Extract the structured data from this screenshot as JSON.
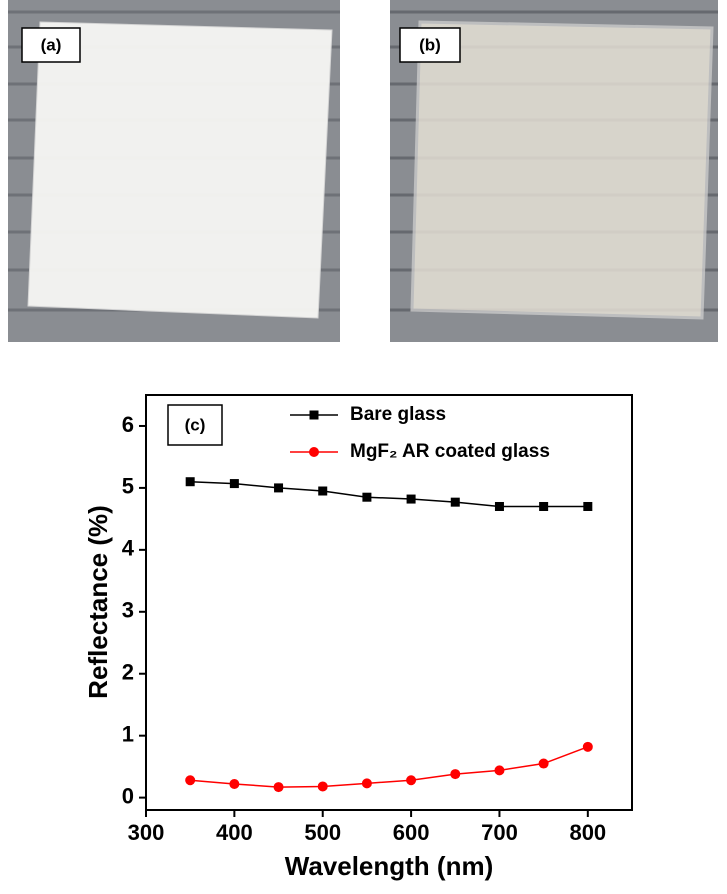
{
  "panels": [
    {
      "label": "(a)"
    },
    {
      "label": "(b)"
    }
  ],
  "chart_data": {
    "type": "line",
    "annotation": "(c)",
    "x_label": "Wavelength (nm)",
    "y_label": "Reflectance (%)",
    "x": [
      350,
      400,
      450,
      500,
      550,
      600,
      650,
      700,
      750,
      800
    ],
    "series": [
      {
        "name": "Bare glass",
        "color": "#000000",
        "marker": "square",
        "values": [
          5.1,
          5.07,
          5.0,
          4.95,
          4.85,
          4.82,
          4.77,
          4.7,
          4.7,
          4.7
        ]
      },
      {
        "name": "MgF₂ AR coated glass",
        "color": "#ff0000",
        "marker": "circle",
        "values": [
          0.28,
          0.22,
          0.17,
          0.18,
          0.23,
          0.28,
          0.38,
          0.44,
          0.55,
          0.82
        ]
      }
    ],
    "xlim": [
      300,
      850
    ],
    "xticks": [
      300,
      400,
      500,
      600,
      700,
      800
    ],
    "ylim": [
      -0.2,
      6.5
    ],
    "yticks": [
      0,
      1,
      2,
      3,
      4,
      5,
      6
    ],
    "legend": "upper right"
  }
}
